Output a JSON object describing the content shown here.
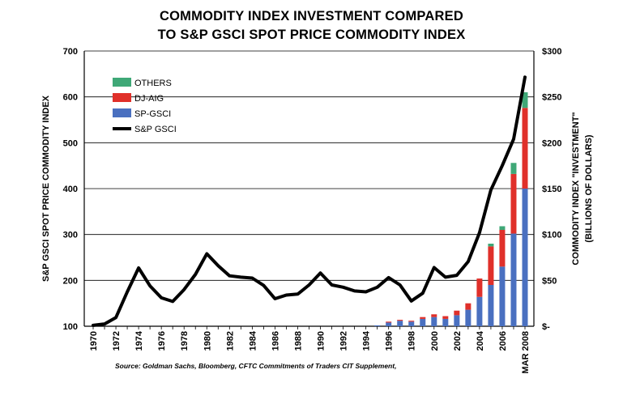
{
  "title_line1": "COMMODITY INDEX INVESTMENT COMPARED",
  "title_line2": "TO S&P GSCI SPOT PRICE COMMODITY INDEX",
  "source": "Source: Goldman Sachs, Bloomberg, CFTC Commitments of Traders CIT Supplement,",
  "chart_data": {
    "type": "bar+line",
    "title": "COMMODITY INDEX INVESTMENT COMPARED TO S&P GSCI SPOT PRICE COMMODITY INDEX",
    "ylabel_left": "S&P GSCI SPOT PRICE COMMODITY INDEX",
    "ylabel_right_1": "COMMODITY INDEX \"INVESTMENT\"",
    "ylabel_right_2": "(BILLIONS OF DOLLARS)",
    "ylim_left": [
      100,
      700
    ],
    "yticks_left": [
      100,
      200,
      300,
      400,
      500,
      600,
      700
    ],
    "ylim_right": [
      0,
      300
    ],
    "yticks_right": [
      "$-",
      "$50",
      "$100",
      "$150",
      "$200",
      "$250",
      "$300"
    ],
    "x_tick_labels": [
      "1970",
      "1972",
      "1974",
      "1976",
      "1978",
      "1980",
      "1982",
      "1984",
      "1986",
      "1988",
      "1990",
      "1992",
      "1994",
      "1996",
      "1998",
      "2000",
      "2002",
      "2004",
      "2006",
      "MAR 2008"
    ],
    "legend": [
      {
        "name": "OTHERS",
        "color": "#3fa877"
      },
      {
        "name": "DJ-AIG",
        "color": "#e0302a"
      },
      {
        "name": "SP-GSCI",
        "color": "#4a70c0"
      },
      {
        "name": "S&P GSCI",
        "color": "#000000"
      }
    ],
    "line_series": {
      "name": "S&P GSCI",
      "x": [
        1970,
        1971,
        1972,
        1973,
        1974,
        1975,
        1976,
        1977,
        1978,
        1979,
        1980,
        1981,
        1982,
        1983,
        1984,
        1985,
        1986,
        1987,
        1988,
        1989,
        1990,
        1991,
        1992,
        1993,
        1994,
        1995,
        1996,
        1997,
        1998,
        1999,
        2000,
        2001,
        2002,
        2003,
        2004,
        2005,
        2006,
        2007,
        2008
      ],
      "values": [
        102,
        105,
        119,
        175,
        227,
        188,
        162,
        154,
        180,
        213,
        258,
        232,
        210,
        207,
        205,
        189,
        160,
        168,
        170,
        190,
        216,
        190,
        185,
        177,
        175,
        185,
        206,
        190,
        155,
        172,
        228,
        207,
        211,
        241,
        304,
        397,
        450,
        508,
        643
      ]
    },
    "bar_series": {
      "x": [
        1995,
        1996,
        1997,
        1998,
        1999,
        2000,
        2001,
        2002,
        2003,
        2004,
        2005,
        2006,
        2007,
        2008
      ],
      "SP-GSCI": [
        1,
        4,
        6,
        5,
        8,
        10,
        8,
        12,
        18,
        32,
        45,
        65,
        101,
        150
      ],
      "DJ-AIG": [
        0,
        1,
        1,
        1,
        2,
        3,
        3,
        5,
        7,
        20,
        42,
        40,
        65,
        88
      ],
      "OTHERS": [
        0,
        0,
        0,
        0,
        0,
        0,
        0,
        0,
        0,
        0,
        3,
        4,
        12,
        17
      ]
    }
  }
}
